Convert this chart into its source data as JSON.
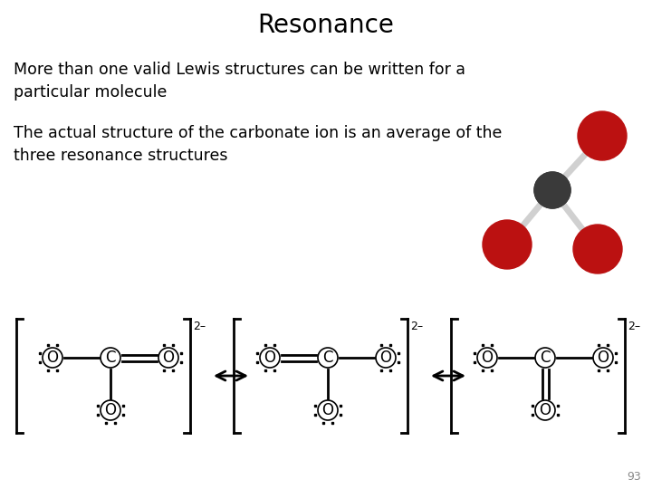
{
  "title": "Resonance",
  "title_fontsize": 20,
  "title_fontweight": "normal",
  "text1": "More than one valid Lewis structures can be written for a\nparticular molecule",
  "text2": "The actual structure of the carbonate ion is an average of the\nthree resonance structures",
  "text_fontsize": 12.5,
  "bg_color": "#ffffff",
  "text_color": "#000000",
  "page_num": "93",
  "struct1_label": "2–",
  "struct2_label": "2–",
  "struct3_label": "2–",
  "mol3d_carbon_color": "#3a3a3a",
  "mol3d_oxygen_color": "#bb1111"
}
